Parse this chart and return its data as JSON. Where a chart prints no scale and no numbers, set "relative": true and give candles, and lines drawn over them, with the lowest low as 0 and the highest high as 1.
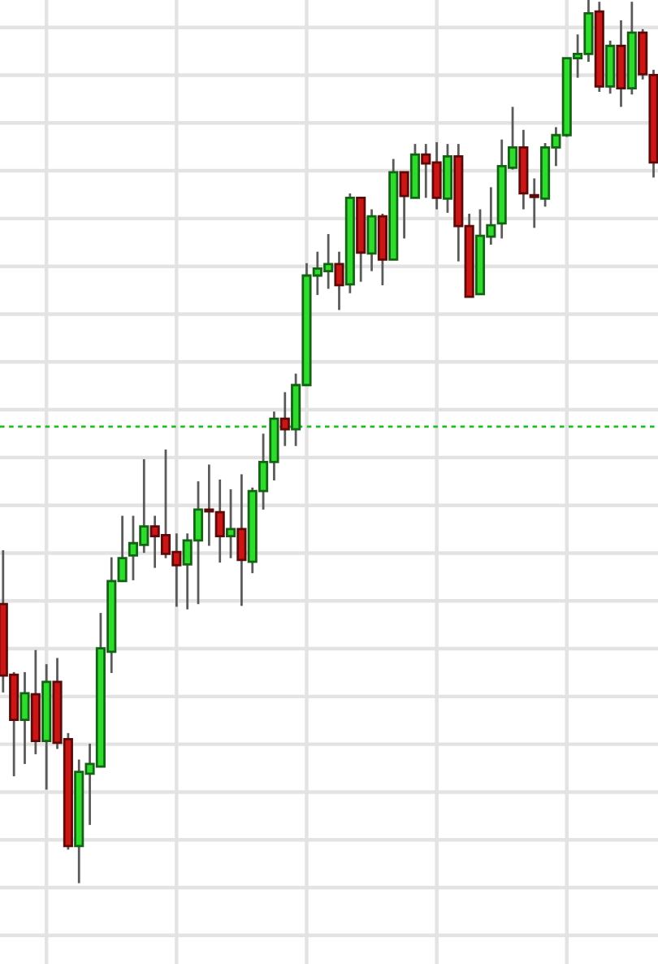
{
  "chart_data": {
    "type": "candlestick",
    "relative": true,
    "categories": [
      null,
      null,
      null,
      null,
      null,
      null,
      null,
      null,
      null,
      null,
      null,
      null,
      null,
      null,
      null,
      null,
      null,
      null,
      null,
      null,
      null,
      null,
      null,
      null,
      null,
      null,
      null,
      null,
      null,
      null,
      null,
      null,
      null,
      null,
      null,
      null,
      null,
      null,
      null,
      null,
      null,
      null,
      null,
      null,
      null,
      null,
      null,
      null,
      null,
      null,
      null,
      null,
      null,
      null,
      null,
      null,
      null,
      null,
      null,
      null,
      null
    ],
    "ohlc": [
      [
        0.316,
        0.377,
        0.216,
        0.235
      ],
      [
        0.236,
        0.239,
        0.121,
        0.185
      ],
      [
        0.185,
        0.239,
        0.135,
        0.215
      ],
      [
        0.214,
        0.264,
        0.146,
        0.161
      ],
      [
        0.161,
        0.248,
        0.106,
        0.228
      ],
      [
        0.228,
        0.255,
        0.152,
        0.159
      ],
      [
        0.163,
        0.17,
        0.038,
        0.042
      ],
      [
        0.042,
        0.14,
        0.0,
        0.126
      ],
      [
        0.124,
        0.158,
        0.066,
        0.135
      ],
      [
        0.132,
        0.306,
        0.132,
        0.266
      ],
      [
        0.262,
        0.369,
        0.238,
        0.342
      ],
      [
        0.342,
        0.416,
        0.341,
        0.368
      ],
      [
        0.371,
        0.416,
        0.343,
        0.385
      ],
      [
        0.383,
        0.48,
        0.374,
        0.404
      ],
      [
        0.404,
        0.416,
        0.357,
        0.393
      ],
      [
        0.394,
        0.491,
        0.368,
        0.373
      ],
      [
        0.375,
        0.396,
        0.313,
        0.36
      ],
      [
        0.361,
        0.396,
        0.31,
        0.388
      ],
      [
        0.388,
        0.455,
        0.316,
        0.423
      ],
      [
        0.423,
        0.474,
        0.382,
        0.421
      ],
      [
        0.42,
        0.457,
        0.363,
        0.393
      ],
      [
        0.393,
        0.446,
        0.368,
        0.401
      ],
      [
        0.401,
        0.463,
        0.314,
        0.366
      ],
      [
        0.364,
        0.448,
        0.351,
        0.444
      ],
      [
        0.444,
        0.509,
        0.423,
        0.477
      ],
      [
        0.477,
        0.534,
        0.456,
        0.526
      ],
      [
        0.526,
        0.556,
        0.495,
        0.514
      ],
      [
        0.514,
        0.577,
        0.495,
        0.564
      ],
      [
        0.564,
        0.702,
        0.564,
        0.688
      ],
      [
        0.688,
        0.715,
        0.666,
        0.696
      ],
      [
        0.693,
        0.735,
        0.673,
        0.701
      ],
      [
        0.701,
        0.715,
        0.649,
        0.677
      ],
      [
        0.678,
        0.781,
        0.668,
        0.776
      ],
      [
        0.776,
        0.777,
        0.681,
        0.714
      ],
      [
        0.713,
        0.763,
        0.693,
        0.755
      ],
      [
        0.755,
        0.758,
        0.677,
        0.706
      ],
      [
        0.706,
        0.82,
        0.706,
        0.805
      ],
      [
        0.805,
        0.805,
        0.73,
        0.778
      ],
      [
        0.776,
        0.837,
        0.776,
        0.825
      ],
      [
        0.825,
        0.837,
        0.776,
        0.815
      ],
      [
        0.816,
        0.839,
        0.763,
        0.776
      ],
      [
        0.775,
        0.837,
        0.759,
        0.823
      ],
      [
        0.823,
        0.837,
        0.704,
        0.744
      ],
      [
        0.744,
        0.758,
        0.664,
        0.664
      ],
      [
        0.667,
        0.763,
        0.667,
        0.733
      ],
      [
        0.732,
        0.788,
        0.723,
        0.745
      ],
      [
        0.747,
        0.842,
        0.73,
        0.812
      ],
      [
        0.81,
        0.879,
        0.808,
        0.833
      ],
      [
        0.833,
        0.853,
        0.763,
        0.781
      ],
      [
        0.779,
        0.798,
        0.742,
        0.777
      ],
      [
        0.775,
        0.838,
        0.766,
        0.833
      ],
      [
        0.833,
        0.856,
        0.812,
        0.847
      ],
      [
        0.847,
        0.934,
        0.845,
        0.934
      ],
      [
        0.934,
        0.961,
        0.912,
        0.939
      ],
      [
        0.939,
        1.0,
        0.93,
        0.985
      ],
      [
        0.987,
        0.998,
        0.896,
        0.902
      ],
      [
        0.902,
        0.954,
        0.894,
        0.948
      ],
      [
        0.948,
        0.977,
        0.879,
        0.9
      ],
      [
        0.9,
        0.998,
        0.893,
        0.963
      ],
      [
        0.963,
        0.967,
        0.91,
        0.916
      ],
      [
        0.915,
        0.921,
        0.799,
        0.816
      ]
    ],
    "colors": [
      "#cc1515",
      "#cc1515",
      "#2ddc2d",
      "#cc1515",
      "#2ddc2d",
      "#cc1515",
      "#cc1515",
      "#2ddc2d",
      "#2ddc2d",
      "#2ddc2d",
      "#2ddc2d",
      "#2ddc2d",
      "#2ddc2d",
      "#2ddc2d",
      "#cc1515",
      "#cc1515",
      "#cc1515",
      "#2ddc2d",
      "#2ddc2d",
      "#cc1515",
      "#cc1515",
      "#2ddc2d",
      "#cc1515",
      "#2ddc2d",
      "#2ddc2d",
      "#2ddc2d",
      "#cc1515",
      "#2ddc2d",
      "#2ddc2d",
      "#2ddc2d",
      "#2ddc2d",
      "#cc1515",
      "#2ddc2d",
      "#cc1515",
      "#2ddc2d",
      "#cc1515",
      "#2ddc2d",
      "#cc1515",
      "#2ddc2d",
      "#cc1515",
      "#cc1515",
      "#2ddc2d",
      "#cc1515",
      "#cc1515",
      "#2ddc2d",
      "#2ddc2d",
      "#2ddc2d",
      "#2ddc2d",
      "#cc1515",
      "#cc1515",
      "#2ddc2d",
      "#2ddc2d",
      "#2ddc2d",
      "#2ddc2d",
      "#2ddc2d",
      "#cc1515",
      "#2ddc2d",
      "#cc1515",
      "#2ddc2d",
      "#cc1515",
      "#cc1515"
    ],
    "grid": true,
    "tick_labels": false,
    "ref_lines": [
      {
        "axis": "y",
        "value": 0.517,
        "color": "#22bb22",
        "line_style": "dotted"
      }
    ]
  }
}
